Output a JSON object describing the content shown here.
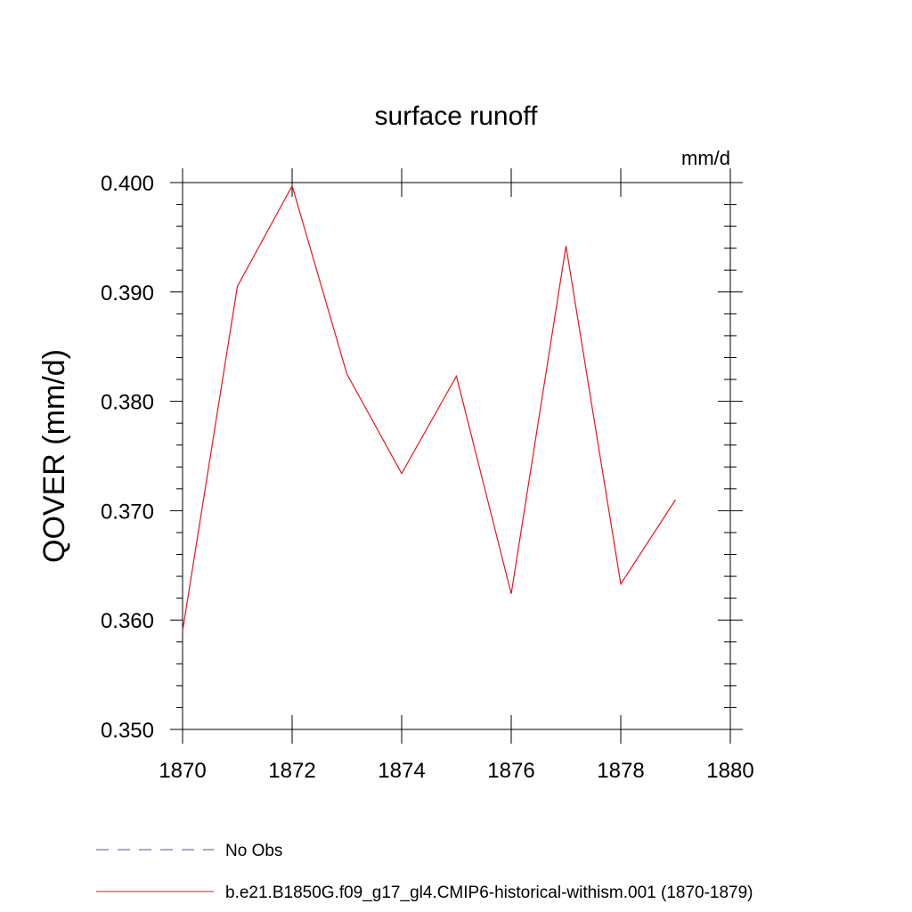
{
  "chart_data": {
    "type": "line",
    "title": "surface runoff",
    "units": "mm/d",
    "xlabel": "",
    "ylabel": "QOVER  (mm/d)",
    "xlim": [
      1870,
      1880
    ],
    "ylim": [
      0.35,
      0.4
    ],
    "x_ticks": [
      1870,
      1872,
      1874,
      1876,
      1878,
      1880
    ],
    "x_tick_labels": [
      "1870",
      "1872",
      "1874",
      "1876",
      "1878",
      "1880"
    ],
    "y_ticks": [
      0.35,
      0.36,
      0.37,
      0.38,
      0.39,
      0.4
    ],
    "y_tick_labels": [
      "0.350",
      "0.360",
      "0.370",
      "0.380",
      "0.390",
      "0.400"
    ],
    "grid": false,
    "legend_position": "bottom",
    "series": [
      {
        "name": "No Obs",
        "color": "#5a4fa8",
        "dash": "dashed",
        "x": [],
        "y": []
      },
      {
        "name": "b.e21.B1850G.f09_g17_gl4.CMIP6-historical-withism.001 (1870-1879)",
        "color": "#e8141c",
        "dash": "solid",
        "x": [
          1870,
          1871,
          1872,
          1873,
          1874,
          1875,
          1876,
          1877,
          1878,
          1879
        ],
        "y": [
          0.359,
          0.3905,
          0.3997,
          0.3825,
          0.3734,
          0.3823,
          0.3624,
          0.3942,
          0.3633,
          0.371
        ]
      }
    ]
  }
}
